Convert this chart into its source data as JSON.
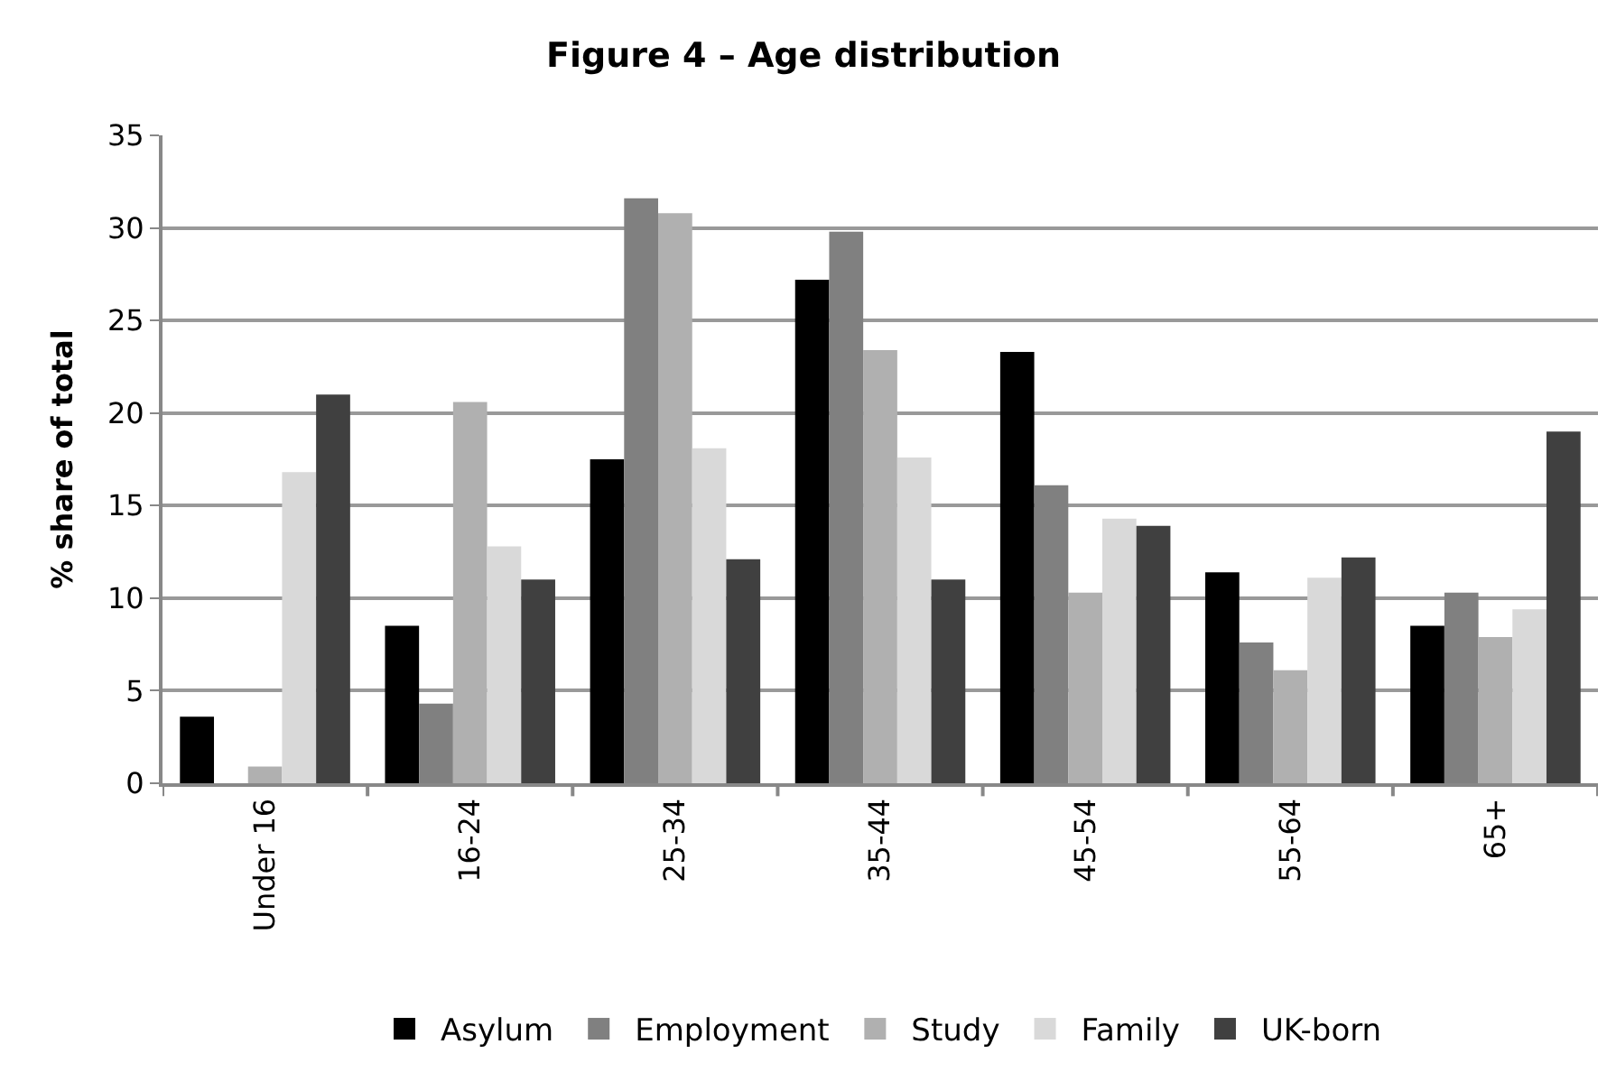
{
  "chart_data": {
    "type": "bar",
    "title": "Figure 4 – Age distribution",
    "ylabel": "% share of total",
    "categories": [
      "Under 16",
      "16-24",
      "25-34",
      "35-44",
      "45-54",
      "55-64",
      "65+"
    ],
    "series": [
      {
        "name": "Asylum",
        "color": "#000000",
        "values": [
          3.6,
          8.5,
          17.5,
          27.2,
          23.3,
          11.4,
          8.5
        ]
      },
      {
        "name": "Employment",
        "color": "#808080",
        "values": [
          0,
          4.3,
          31.6,
          29.8,
          16.1,
          7.6,
          10.3
        ]
      },
      {
        "name": "Study",
        "color": "#b0b0b0",
        "values": [
          0.9,
          20.6,
          30.8,
          23.4,
          10.3,
          6.1,
          7.9
        ]
      },
      {
        "name": "Family",
        "color": "#d9d9d9",
        "values": [
          16.8,
          12.8,
          18.1,
          17.6,
          14.3,
          11.1,
          9.4
        ]
      },
      {
        "name": "UK-born",
        "color": "#404040",
        "values": [
          21,
          11.0,
          12.1,
          11.0,
          13.9,
          12.2,
          19.0
        ]
      }
    ],
    "ylim": [
      0,
      35
    ],
    "yticks": [
      0,
      5,
      10,
      15,
      20,
      25,
      30,
      35
    ],
    "grid": "y",
    "legend": "bottom"
  }
}
